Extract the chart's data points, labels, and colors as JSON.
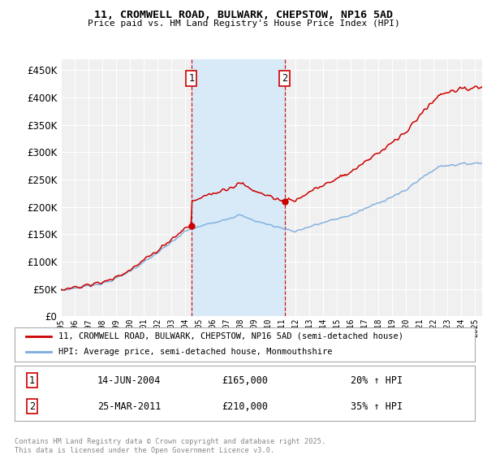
{
  "title": "11, CROMWELL ROAD, BULWARK, CHEPSTOW, NP16 5AD",
  "subtitle": "Price paid vs. HM Land Registry's House Price Index (HPI)",
  "ylim": [
    0,
    470000
  ],
  "yticks": [
    0,
    50000,
    100000,
    150000,
    200000,
    250000,
    300000,
    350000,
    400000,
    450000
  ],
  "sale1_date": "14-JUN-2004",
  "sale1_price": 165000,
  "sale1_hpi": "20% ↑ HPI",
  "sale2_date": "25-MAR-2011",
  "sale2_price": 210000,
  "sale2_hpi": "35% ↑ HPI",
  "line_color_red": "#cc0000",
  "line_color_blue": "#7aaadd",
  "background_color": "#ffffff",
  "plot_bg_color": "#f0f0f0",
  "grid_color": "#ffffff",
  "legend_label_red": "11, CROMWELL ROAD, BULWARK, CHEPSTOW, NP16 5AD (semi-detached house)",
  "legend_label_blue": "HPI: Average price, semi-detached house, Monmouthshire",
  "footnote": "Contains HM Land Registry data © Crown copyright and database right 2025.\nThis data is licensed under the Open Government Licence v3.0.",
  "shaded_color": "#d8eaf8",
  "sale1_year": 2004.46,
  "sale2_year": 2011.21,
  "xmin": 1995,
  "xmax": 2025.5
}
